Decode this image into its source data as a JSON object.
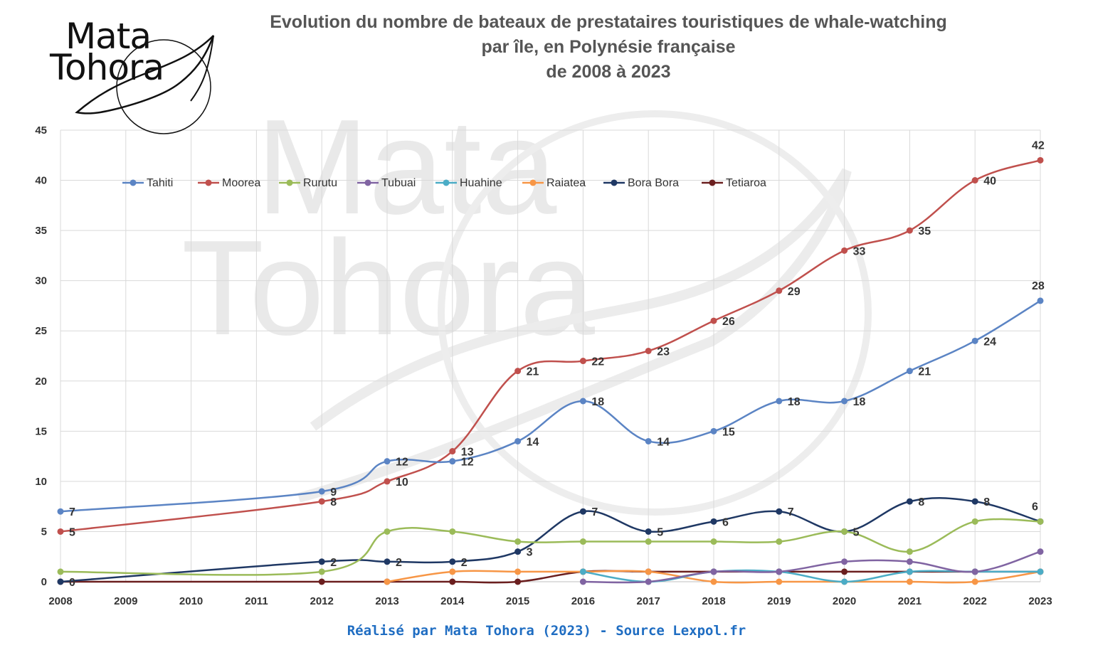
{
  "logo": {
    "line1": "Mata",
    "line2": "Tohora"
  },
  "watermark": {
    "line1": "Mata",
    "line2": "Tohora"
  },
  "title": {
    "line1": "Evolution du nombre de bateaux de prestataires touristiques de whale-watching",
    "line2": "par île, en Polynésie française",
    "line3": "de 2008 à 2023"
  },
  "footer": "Réalisé par Mata Tohora (2023) - Source Lexpol.fr",
  "chart_data": {
    "type": "line",
    "title": "Evolution du nombre de bateaux de prestataires touristiques de whale-watching par île, en Polynésie française de 2008 à 2023",
    "xlabel": "",
    "ylabel": "",
    "categories": [
      "2008",
      "2009",
      "2010",
      "2011",
      "2012",
      "2013",
      "2014",
      "2015",
      "2016",
      "2017",
      "2018",
      "2019",
      "2020",
      "2021",
      "2022",
      "2023"
    ],
    "ylim": [
      0,
      45
    ],
    "yticks": [
      0,
      5,
      10,
      15,
      20,
      25,
      30,
      35,
      40,
      45
    ],
    "grid": true,
    "legend_position": "top",
    "series": [
      {
        "name": "Tahiti",
        "color": "#5b84c4",
        "values": [
          7,
          null,
          null,
          null,
          9,
          12,
          12,
          14,
          18,
          14,
          15,
          18,
          18,
          21,
          24,
          28
        ],
        "labels": [
          7,
          null,
          null,
          null,
          9,
          12,
          12,
          14,
          18,
          14,
          15,
          18,
          18,
          21,
          24,
          28
        ]
      },
      {
        "name": "Moorea",
        "color": "#c0504d",
        "values": [
          5,
          null,
          null,
          null,
          8,
          10,
          13,
          21,
          22,
          23,
          26,
          29,
          33,
          35,
          40,
          42
        ],
        "labels": [
          5,
          null,
          null,
          null,
          8,
          10,
          13,
          21,
          22,
          23,
          26,
          29,
          33,
          35,
          40,
          42
        ]
      },
      {
        "name": "Rurutu",
        "color": "#9bbb59",
        "values": [
          1,
          null,
          null,
          null,
          1,
          5,
          5,
          4,
          4,
          4,
          4,
          4,
          5,
          3,
          6,
          6
        ],
        "labels": []
      },
      {
        "name": "Tubuai",
        "color": "#8064a2",
        "values": [
          null,
          null,
          null,
          null,
          null,
          null,
          null,
          null,
          0,
          0,
          1,
          1,
          2,
          2,
          1,
          3
        ],
        "labels": []
      },
      {
        "name": "Huahine",
        "color": "#4bacc6",
        "values": [
          null,
          null,
          null,
          null,
          null,
          null,
          null,
          null,
          1,
          0,
          1,
          1,
          0,
          1,
          1,
          1
        ],
        "labels": []
      },
      {
        "name": "Raiatea",
        "color": "#f79646",
        "values": [
          null,
          null,
          null,
          null,
          null,
          0,
          1,
          1,
          1,
          1,
          0,
          0,
          0,
          0,
          0,
          1
        ],
        "labels": []
      },
      {
        "name": "Bora Bora",
        "color": "#1f3864",
        "values": [
          0,
          null,
          null,
          null,
          2,
          2,
          2,
          3,
          7,
          5,
          6,
          7,
          5,
          8,
          8,
          6
        ],
        "labels": [
          0,
          null,
          null,
          null,
          2,
          2,
          2,
          3,
          7,
          5,
          6,
          7,
          5,
          8,
          8,
          6
        ]
      },
      {
        "name": "Tetiaroa",
        "color": "#6b1f1f",
        "values": [
          0,
          null,
          null,
          null,
          0,
          0,
          0,
          0,
          1,
          1,
          1,
          1,
          1,
          1,
          1,
          1
        ],
        "labels": []
      }
    ]
  }
}
